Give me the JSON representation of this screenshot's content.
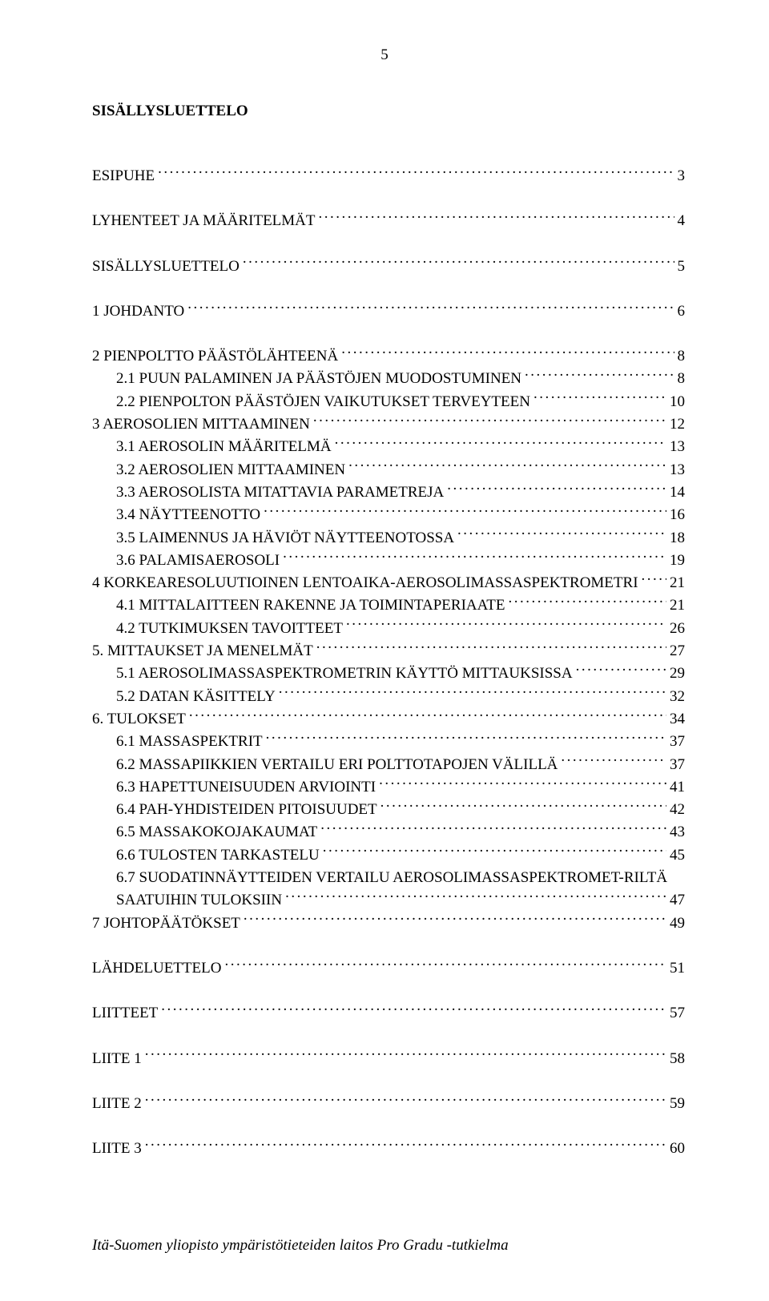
{
  "page_number": "5",
  "doc_title": "SISÄLLYSLUETTELO",
  "footer": "Itä-Suomen yliopisto ympäristötieteiden laitos Pro Gradu -tutkielma",
  "toc": [
    {
      "label": "ESIPUHE",
      "page": "3",
      "level": 0,
      "gap_after": true
    },
    {
      "label": "LYHENTEET JA MÄÄRITELMÄT",
      "page": "4",
      "level": 0,
      "gap_after": true
    },
    {
      "label": "SISÄLLYSLUETTELO",
      "page": "5",
      "level": 0,
      "gap_after": true
    },
    {
      "label": "1 JOHDANTO",
      "page": "6",
      "level": 0,
      "gap_after": true
    },
    {
      "label": "2 PIENPOLTTO PÄÄSTÖLÄHTEENÄ",
      "page": "8",
      "level": 0
    },
    {
      "label": "2.1 PUUN PALAMINEN JA PÄÄSTÖJEN MUODOSTUMINEN",
      "page": "8",
      "level": 1
    },
    {
      "label": "2.2 PIENPOLTON PÄÄSTÖJEN VAIKUTUKSET TERVEYTEEN",
      "page": "10",
      "level": 1
    },
    {
      "label": "3 AEROSOLIEN MITTAAMINEN",
      "page": "12",
      "level": 0
    },
    {
      "label": "3.1 AEROSOLIN MÄÄRITELMÄ",
      "page": "13",
      "level": 1
    },
    {
      "label": "3.2 AEROSOLIEN MITTAAMINEN",
      "page": "13",
      "level": 1
    },
    {
      "label": "3.3 AEROSOLISTA MITATTAVIA PARAMETREJA",
      "page": "14",
      "level": 1
    },
    {
      "label": "3.4 NÄYTTEENOTTO",
      "page": "16",
      "level": 1
    },
    {
      "label": "3.5 LAIMENNUS JA HÄVIÖT NÄYTTEENOTOSSA",
      "page": "18",
      "level": 1
    },
    {
      "label": "3.6 PALAMISAEROSOLI",
      "page": "19",
      "level": 1
    },
    {
      "label": "4 KORKEARESOLUUTIOINEN LENTOAIKA-AEROSOLIMASSASPEKTROMETRI",
      "page": "21",
      "level": 0
    },
    {
      "label": "4.1 MITTALAITTEEN RAKENNE JA TOIMINTAPERIAATE",
      "page": "21",
      "level": 1
    },
    {
      "label": "4.2    TUTKIMUKSEN TAVOITTEET",
      "page": "26",
      "level": 1
    },
    {
      "label": "5.  MITTAUKSET JA MENELMÄT",
      "page": "27",
      "level": 0
    },
    {
      "label": "5.1 AEROSOLIMASSASPEKTROMETRIN KÄYTTÖ MITTAUKSISSA",
      "page": "29",
      "level": 1
    },
    {
      "label": "5.2 DATAN KÄSITTELY",
      "page": "32",
      "level": 1
    },
    {
      "label": "6. TULOKSET",
      "page": "34",
      "level": 0
    },
    {
      "label": "6.1 MASSASPEKTRIT",
      "page": "37",
      "level": 1
    },
    {
      "label": "6.2 MASSAPIIKKIEN VERTAILU ERI POLTTOTAPOJEN VÄLILLÄ",
      "page": "37",
      "level": 1
    },
    {
      "label": "6.3 HAPETTUNEISUUDEN ARVIOINTI",
      "page": "41",
      "level": 1
    },
    {
      "label": "6.4 PAH-YHDISTEIDEN PITOISUUDET",
      "page": "42",
      "level": 1
    },
    {
      "label": "6.5 MASSAKOKOJAKAUMAT",
      "page": "43",
      "level": 1
    },
    {
      "label": "6.6 TULOSTEN TARKASTELU",
      "page": "45",
      "level": 1
    },
    {
      "label": "6.7 SUODATINNÄYTTEIDEN VERTAILU AEROSOLIMASSASPEKTROMET-RILTÄ",
      "level": 1,
      "no_dots": true
    },
    {
      "label": "SAATUIHIN TULOKSIIN",
      "page": "47",
      "level": 1
    },
    {
      "label": "7 JOHTOPÄÄTÖKSET",
      "page": "49",
      "level": 0,
      "gap_after": true
    },
    {
      "label": "LÄHDELUETTELO",
      "page": "51",
      "level": 0,
      "gap_after": true
    },
    {
      "label": "LIITTEET",
      "page": "57",
      "level": 0,
      "gap_after": true
    },
    {
      "label": "LIITE 1",
      "page": "58",
      "level": 0,
      "gap_after": true
    },
    {
      "label": "LIITE 2",
      "page": "59",
      "level": 0,
      "gap_after": true
    },
    {
      "label": "LIITE 3",
      "page": "60",
      "level": 0
    }
  ]
}
